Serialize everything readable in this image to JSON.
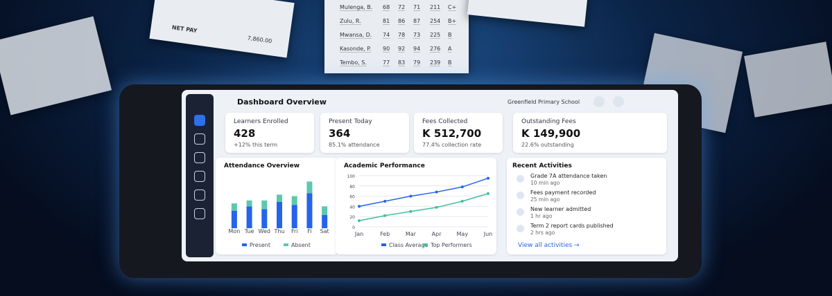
{
  "paper": {
    "net_label": "NET PAY",
    "net_value": "7,860.00",
    "rows": [
      [
        "Mulenga, B.",
        "68",
        "72",
        "71",
        "211",
        "C+"
      ],
      [
        "Zulu, R.",
        "81",
        "86",
        "87",
        "254",
        "B+"
      ],
      [
        "Mwansa, D.",
        "74",
        "78",
        "73",
        "225",
        "B"
      ],
      [
        "Kasonde, P.",
        "90",
        "92",
        "94",
        "276",
        "A"
      ],
      [
        "Tembo, S.",
        "77",
        "83",
        "79",
        "239",
        "B"
      ]
    ]
  },
  "header": {
    "title": "Dashboard Overview",
    "school": "Greenfield Primary School"
  },
  "stats": [
    {
      "label": "Learners Enrolled",
      "value": "428",
      "note": "+12% this term"
    },
    {
      "label": "Present Today",
      "value": "364",
      "note": "85.1% attendance"
    },
    {
      "label": "Fees Collected",
      "value": "K 512,700",
      "note": "77.4% collection rate"
    },
    {
      "label": "Outstanding Fees",
      "value": "K 149,900",
      "note": "22.6% outstanding"
    }
  ],
  "chart_data": [
    {
      "type": "bar",
      "title": "Attendance Overview",
      "categories": [
        "Mon",
        "Tue",
        "Wed",
        "Thu",
        "Fri",
        "Fi",
        "Sat"
      ],
      "series": [
        {
          "name": "Present",
          "color": "#2563eb",
          "values": [
            60,
            75,
            65,
            90,
            80,
            120,
            45
          ]
        },
        {
          "name": "Absent",
          "color": "#5cc8b0",
          "values": [
            25,
            20,
            30,
            25,
            30,
            40,
            30
          ]
        }
      ],
      "ylim": [
        0,
        180
      ],
      "stacked": true
    },
    {
      "type": "line",
      "title": "Academic Performance",
      "categories": [
        "Jan",
        "Feb",
        "Mar",
        "Apr",
        "May",
        "Jun"
      ],
      "series": [
        {
          "name": "Class Average",
          "color": "#2563eb",
          "values": [
            40,
            50,
            60,
            68,
            78,
            95
          ]
        },
        {
          "name": "Top Performers",
          "color": "#3fbf9c",
          "values": [
            12,
            22,
            30,
            38,
            50,
            65
          ]
        }
      ],
      "ylim": [
        0,
        100
      ],
      "yticks": [
        0,
        20,
        40,
        60,
        80,
        100
      ]
    }
  ],
  "activities": {
    "title": "Recent Activities",
    "link": "View all activities →",
    "items": [
      {
        "text": "Grade 7A attendance taken",
        "time": "10 min ago"
      },
      {
        "text": "Fees payment recorded",
        "time": "25 min ago"
      },
      {
        "text": "New learner admitted",
        "time": "1 hr ago"
      },
      {
        "text": "Term 2 report cards published",
        "time": "2 hrs ago"
      }
    ]
  }
}
